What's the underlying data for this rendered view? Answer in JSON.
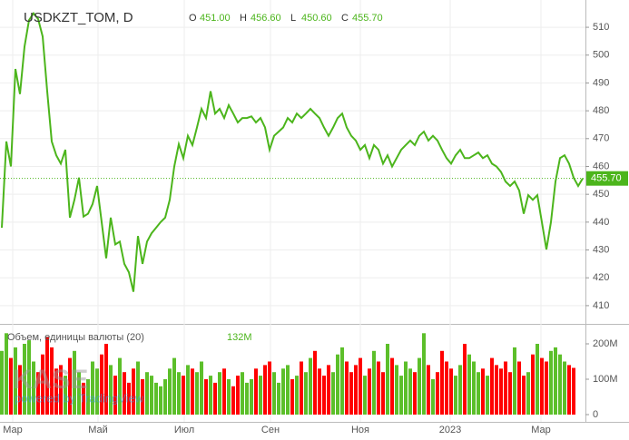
{
  "chart_data": {
    "type": "line",
    "title": "USDKZT_TOM, D",
    "ohlc": [
      {
        "label": "O",
        "value": "451.00"
      },
      {
        "label": "H",
        "value": "456.60"
      },
      {
        "label": "L",
        "value": "450.60"
      },
      {
        "label": "C",
        "value": "455.70"
      }
    ],
    "last_price_label": "455.70",
    "last_price": 455.7,
    "color": "#4cb51c",
    "values": [
      438,
      469,
      460,
      495,
      486,
      503,
      512.6,
      515,
      513,
      506.7,
      487,
      469,
      464,
      461,
      466,
      441.6,
      448,
      456,
      442,
      443,
      446.5,
      453,
      440,
      427,
      441.6,
      432,
      433,
      425,
      422,
      415,
      435,
      425,
      433,
      436,
      438,
      440,
      441.6,
      448,
      460,
      468,
      463,
      471,
      467.7,
      474,
      480.7,
      477.4,
      487,
      479,
      480.7,
      477.4,
      482,
      479,
      475.8,
      477.4,
      477.4,
      478,
      475.8,
      477.4,
      474,
      466,
      471,
      472.5,
      474,
      477.4,
      475.8,
      479,
      477.4,
      479,
      480.7,
      479,
      477.4,
      474,
      471,
      474,
      477.4,
      479,
      474,
      471,
      469.3,
      466,
      467.7,
      463,
      467.7,
      466,
      461,
      464,
      460,
      463,
      466,
      467.7,
      469.3,
      467.7,
      471,
      472.5,
      469.3,
      471,
      469.3,
      466,
      463,
      461,
      464,
      466,
      463,
      463,
      464,
      465,
      463,
      464,
      461,
      460,
      458,
      454.6,
      453,
      454.6,
      451.4,
      443,
      449.7,
      448,
      449.7,
      440,
      430.2,
      440,
      454.6,
      463,
      464,
      461,
      456,
      453,
      455.7
    ],
    "xlim": [
      -0.4,
      128.6
    ],
    "xticks": [
      {
        "value": 2.4,
        "label": "Мар"
      },
      {
        "value": 21.2,
        "label": "Май"
      },
      {
        "value": 40.2,
        "label": "Июл"
      },
      {
        "value": 59.2,
        "label": "Сен"
      },
      {
        "value": 79,
        "label": "Ноя"
      },
      {
        "value": 98.8,
        "label": "2023"
      },
      {
        "value": 118.8,
        "label": "Мар"
      }
    ],
    "ylim": [
      404.1,
      519.8
    ],
    "yticks": [
      410,
      420,
      430,
      440,
      450,
      460,
      470,
      480,
      490,
      500,
      510
    ],
    "grid": true,
    "watermark": "KASE",
    "watermark_sub": "powered by TradingView",
    "volume": {
      "title": "Объем, единицы валюты (20)",
      "last_label": "132M",
      "up_color": "#5cbf2a",
      "down_color": "#ff0000",
      "ylim": [
        0,
        248.7
      ],
      "yticks": [
        {
          "value": 0,
          "label": "0"
        },
        {
          "value": 100,
          "label": "100M"
        },
        {
          "value": 200,
          "label": "200M"
        }
      ],
      "values": [
        180,
        230,
        160,
        190,
        140,
        200,
        210,
        150,
        120,
        170,
        220,
        190,
        130,
        140,
        110,
        160,
        180,
        120,
        90,
        100,
        150,
        130,
        170,
        200,
        140,
        110,
        160,
        120,
        90,
        130,
        150,
        100,
        120,
        110,
        90,
        80,
        100,
        130,
        160,
        120,
        110,
        140,
        130,
        120,
        150,
        100,
        110,
        90,
        120,
        130,
        100,
        80,
        110,
        120,
        90,
        100,
        130,
        110,
        140,
        150,
        120,
        90,
        130,
        140,
        100,
        110,
        150,
        120,
        160,
        180,
        130,
        110,
        140,
        120,
        170,
        190,
        150,
        120,
        140,
        160,
        110,
        130,
        180,
        150,
        120,
        200,
        160,
        140,
        110,
        150,
        130,
        120,
        160,
        230,
        140,
        100,
        120,
        180,
        150,
        130,
        110,
        140,
        200,
        170,
        150,
        120,
        130,
        110,
        160,
        140,
        130,
        150,
        120,
        190,
        150,
        110,
        120,
        170,
        200,
        160,
        150,
        180,
        190,
        170,
        150,
        140,
        132
      ]
    }
  }
}
